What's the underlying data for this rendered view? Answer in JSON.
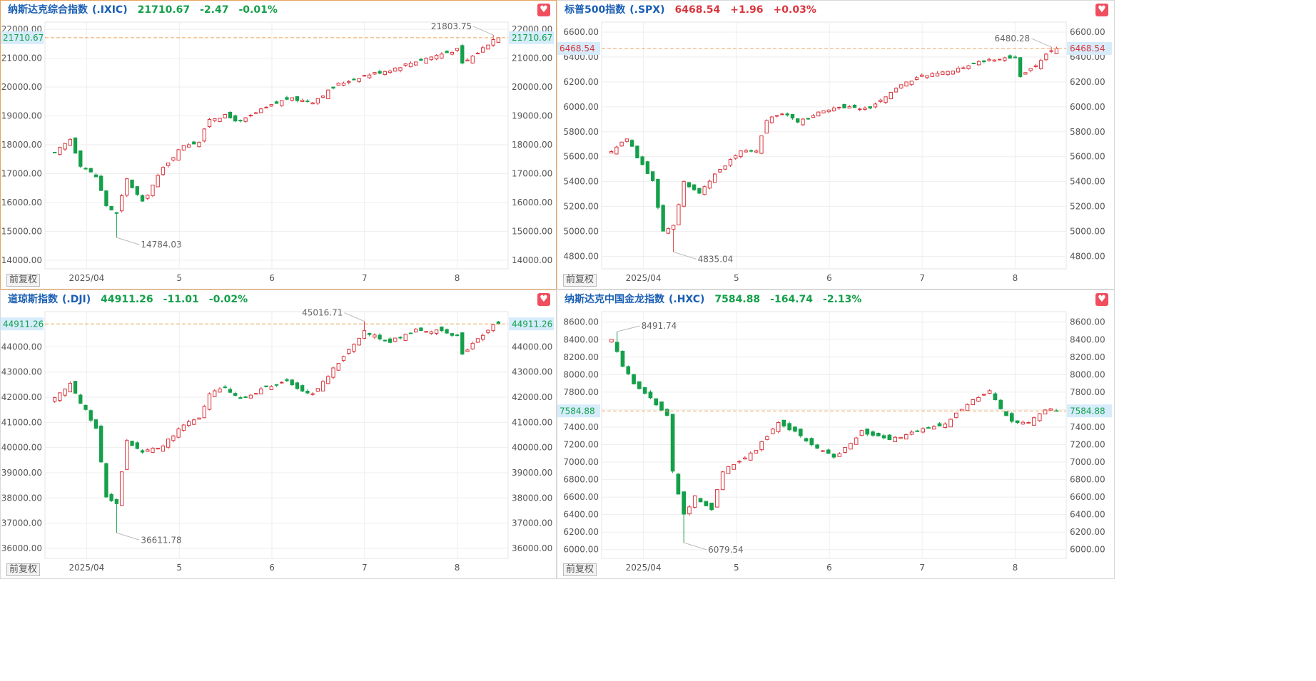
{
  "colors": {
    "up": "#d9363e",
    "down": "#14a04a",
    "accent_line": "#e8a35c",
    "price_tag_bg": "#d6ecfb",
    "grid": "#eeeeee"
  },
  "fav_icon": "heart-icon",
  "adjust_label": "前复权",
  "x_ticks": [
    "2025/04",
    "5",
    "6",
    "7",
    "8"
  ],
  "panels": [
    {
      "name": "纳斯达克综合指数",
      "code": "(.IXIC)",
      "price": "21710.67",
      "change": "-2.47",
      "change_pct": "-0.01%",
      "direction": "down",
      "price_tag": "21710.67",
      "high_label": "21803.75",
      "low_label": "14784.03",
      "chart_data": {
        "type": "candlestick",
        "title": "纳斯达克综合指数 (.IXIC)",
        "y_ticks": [
          "22000.00",
          "21000.00",
          "20000.00",
          "19000.00",
          "18000.00",
          "17000.00",
          "16000.00",
          "15000.00",
          "14000.00"
        ],
        "ylim": [
          13700,
          22250
        ],
        "last_price": 21710.67,
        "high": 21803.75,
        "low": 14784.03,
        "anchors": [
          [
            0,
            17700
          ],
          [
            3,
            18200
          ],
          [
            5,
            17300
          ],
          [
            8,
            16900
          ],
          [
            10,
            15900
          ],
          [
            12,
            15600
          ],
          [
            14,
            16800
          ],
          [
            17,
            16000
          ],
          [
            21,
            17200
          ],
          [
            25,
            18000
          ],
          [
            28,
            18100
          ],
          [
            30,
            18900
          ],
          [
            33,
            19000
          ],
          [
            36,
            18800
          ],
          [
            40,
            19200
          ],
          [
            45,
            19600
          ],
          [
            50,
            19500
          ],
          [
            55,
            20100
          ],
          [
            60,
            20400
          ],
          [
            65,
            20600
          ],
          [
            70,
            20900
          ],
          [
            75,
            21150
          ],
          [
            78,
            21300
          ],
          [
            79,
            20800
          ],
          [
            82,
            21200
          ],
          [
            85,
            21650
          ],
          [
            86,
            21710.67
          ]
        ],
        "spikes": [
          [
            12,
            "low",
            14784.03
          ],
          [
            85,
            "high",
            21803.75
          ]
        ]
      }
    },
    {
      "name": "标普500指数",
      "code": "(.SPX)",
      "price": "6468.54",
      "change": "+1.96",
      "change_pct": "+0.03%",
      "direction": "up",
      "price_tag": "6468.54",
      "high_label": "6480.28",
      "low_label": "4835.04",
      "chart_data": {
        "type": "candlestick",
        "title": "标普500指数 (.SPX)",
        "y_ticks": [
          "6600.00",
          "6400.00",
          "6200.00",
          "6000.00",
          "5800.00",
          "5600.00",
          "5400.00",
          "5200.00",
          "5000.00",
          "4800.00"
        ],
        "ylim": [
          4700,
          6680
        ],
        "last_price": 6468.54,
        "high": 6480.28,
        "low": 4835.04,
        "anchors": [
          [
            0,
            5650
          ],
          [
            3,
            5750
          ],
          [
            5,
            5600
          ],
          [
            8,
            5400
          ],
          [
            10,
            5000
          ],
          [
            12,
            5050
          ],
          [
            14,
            5400
          ],
          [
            17,
            5300
          ],
          [
            21,
            5500
          ],
          [
            25,
            5650
          ],
          [
            28,
            5650
          ],
          [
            30,
            5900
          ],
          [
            33,
            5950
          ],
          [
            36,
            5880
          ],
          [
            40,
            5950
          ],
          [
            45,
            6000
          ],
          [
            50,
            5980
          ],
          [
            55,
            6150
          ],
          [
            60,
            6250
          ],
          [
            65,
            6280
          ],
          [
            70,
            6350
          ],
          [
            75,
            6390
          ],
          [
            78,
            6400
          ],
          [
            79,
            6250
          ],
          [
            82,
            6330
          ],
          [
            85,
            6460
          ],
          [
            86,
            6468.54
          ]
        ],
        "spikes": [
          [
            12,
            "low",
            4835.04
          ],
          [
            85,
            "high",
            6480.28
          ]
        ]
      }
    },
    {
      "name": "道琼斯指数",
      "code": "(.DJI)",
      "price": "44911.26",
      "change": "-11.01",
      "change_pct": "-0.02%",
      "direction": "down",
      "price_tag": "44911.26",
      "high_label": "45016.71",
      "low_label": "36611.78",
      "chart_data": {
        "type": "candlestick",
        "title": "道琼斯指数 (.DJI)",
        "y_ticks": [
          "44000.00",
          "43000.00",
          "42000.00",
          "41000.00",
          "40000.00",
          "39000.00",
          "38000.00",
          "37000.00",
          "36000.00"
        ],
        "ylim": [
          35600,
          45400
        ],
        "last_price": 44911.26,
        "high": 45016.71,
        "low": 36611.78,
        "anchors": [
          [
            0,
            42000
          ],
          [
            3,
            42500
          ],
          [
            5,
            41800
          ],
          [
            8,
            40800
          ],
          [
            10,
            38000
          ],
          [
            12,
            37800
          ],
          [
            14,
            40300
          ],
          [
            17,
            39800
          ],
          [
            21,
            40100
          ],
          [
            25,
            40900
          ],
          [
            28,
            41200
          ],
          [
            30,
            42100
          ],
          [
            33,
            42400
          ],
          [
            36,
            41900
          ],
          [
            40,
            42300
          ],
          [
            45,
            42600
          ],
          [
            50,
            42100
          ],
          [
            55,
            43400
          ],
          [
            60,
            44600
          ],
          [
            65,
            44200
          ],
          [
            70,
            44700
          ],
          [
            75,
            44600
          ],
          [
            78,
            44400
          ],
          [
            79,
            43700
          ],
          [
            82,
            44300
          ],
          [
            85,
            44850
          ],
          [
            86,
            44911.26
          ]
        ],
        "spikes": [
          [
            12,
            "low",
            36611.78
          ],
          [
            60,
            "high",
            45016.71
          ]
        ]
      }
    },
    {
      "name": "纳斯达克中国金龙指数",
      "code": "(.HXC)",
      "price": "7584.88",
      "change": "-164.74",
      "change_pct": "-2.13%",
      "direction": "down",
      "price_tag": "7584.88",
      "high_label": "8491.74",
      "low_label": "6079.54",
      "chart_data": {
        "type": "candlestick",
        "title": "纳斯达克中国金龙指数 (.HXC)",
        "y_ticks": [
          "8600.00",
          "8400.00",
          "8200.00",
          "8000.00",
          "7800.00",
          "7600.00",
          "7400.00",
          "7200.00",
          "7000.00",
          "6800.00",
          "6600.00",
          "6400.00",
          "6200.00",
          "6000.00"
        ],
        "ylim": [
          5900,
          8720
        ],
        "last_price": 7584.88,
        "high": 8491.74,
        "low": 6079.54,
        "anchors": [
          [
            0,
            8400
          ],
          [
            2,
            8100
          ],
          [
            4,
            7900
          ],
          [
            6,
            7800
          ],
          [
            8,
            7650
          ],
          [
            10,
            7550
          ],
          [
            11,
            6900
          ],
          [
            13,
            6400
          ],
          [
            15,
            6600
          ],
          [
            18,
            6450
          ],
          [
            20,
            6900
          ],
          [
            23,
            7000
          ],
          [
            26,
            7150
          ],
          [
            30,
            7450
          ],
          [
            33,
            7350
          ],
          [
            36,
            7200
          ],
          [
            40,
            7050
          ],
          [
            45,
            7350
          ],
          [
            50,
            7250
          ],
          [
            55,
            7350
          ],
          [
            60,
            7450
          ],
          [
            65,
            7700
          ],
          [
            68,
            7800
          ],
          [
            70,
            7600
          ],
          [
            72,
            7450
          ],
          [
            75,
            7450
          ],
          [
            78,
            7600
          ],
          [
            80,
            7584.88
          ]
        ],
        "spikes": [
          [
            1,
            "high",
            8491.74
          ],
          [
            13,
            "low",
            6079.54
          ]
        ]
      }
    }
  ]
}
